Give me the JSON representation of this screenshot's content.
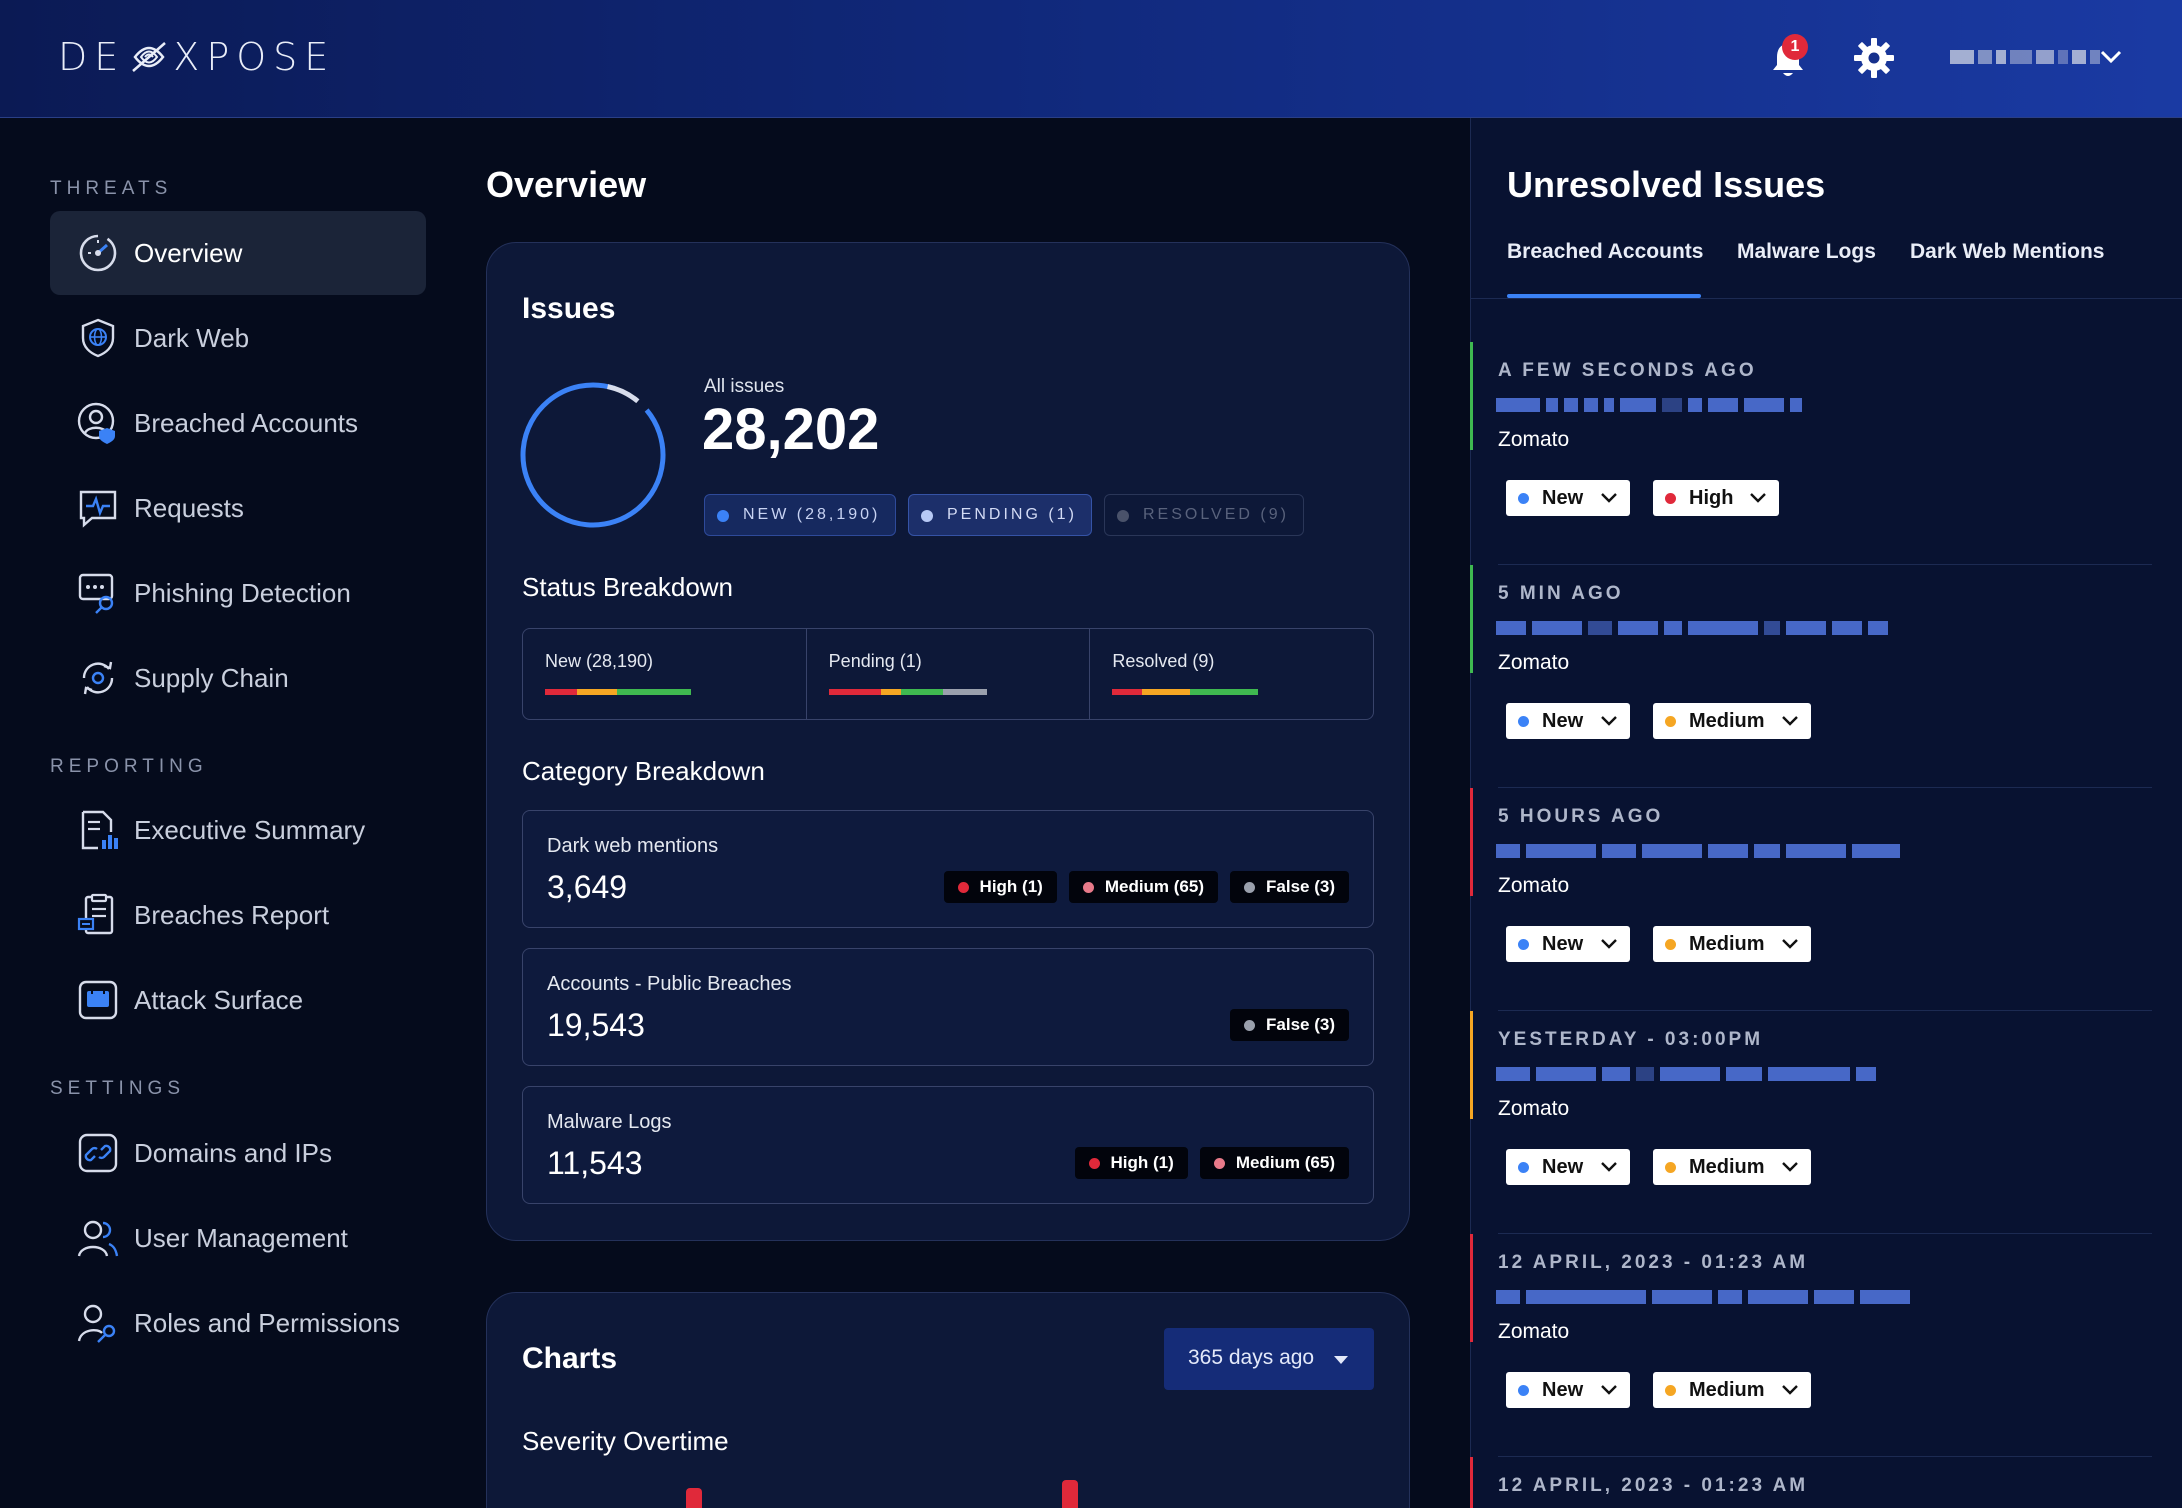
{
  "header": {
    "logo_text_left": "DE",
    "logo_text_right": "XPOSE",
    "notifications_count": "1",
    "user_name_blurred": true
  },
  "sidebar": {
    "sections": [
      {
        "label": "THREATS"
      },
      {
        "label": "REPORTING"
      },
      {
        "label": "SETTINGS"
      }
    ],
    "items": [
      {
        "label": "Overview",
        "icon": "speedometer-icon",
        "active": true
      },
      {
        "label": "Dark Web",
        "icon": "shield-globe-icon"
      },
      {
        "label": "Breached Accounts",
        "icon": "user-shield-icon"
      },
      {
        "label": "Requests",
        "icon": "chat-pulse-icon"
      },
      {
        "label": "Phishing Detection",
        "icon": "phishing-key-icon"
      },
      {
        "label": "Supply Chain",
        "icon": "supply-cycle-icon"
      },
      {
        "label": "Executive Summary",
        "icon": "report-chart-icon"
      },
      {
        "label": "Breaches Report",
        "icon": "clipboard-report-icon"
      },
      {
        "label": "Attack Surface",
        "icon": "calendar-grid-icon"
      },
      {
        "label": "Domains and IPs",
        "icon": "link-icon"
      },
      {
        "label": "User Management",
        "icon": "users-icon"
      },
      {
        "label": "Roles and Permissions",
        "icon": "user-key-icon"
      }
    ]
  },
  "main": {
    "title": "Overview",
    "issues_card": {
      "title": "Issues",
      "all_label": "All issues",
      "all_value": "28,202",
      "pills": {
        "new": "NEW (28,190)",
        "pending": "PENDING (1)",
        "resolved": "RESOLVED (9)"
      },
      "status_title": "Status Breakdown",
      "status": [
        {
          "label": "New (28,190)"
        },
        {
          "label": "Pending (1)"
        },
        {
          "label": "Resolved (9)"
        }
      ],
      "category_title": "Category Breakdown",
      "categories": [
        {
          "label": "Dark web mentions",
          "value": "3,649",
          "tags": [
            "High (1)",
            "Medium (65)",
            "False (3)"
          ]
        },
        {
          "label": "Accounts - Public Breaches",
          "value": "19,543",
          "tags": [
            "False (3)"
          ]
        },
        {
          "label": "Malware Logs",
          "value": "11,543",
          "tags": [
            "High (1)",
            "Medium (65)"
          ]
        }
      ]
    },
    "charts_card": {
      "title": "Charts",
      "range_select": "365 days ago",
      "severity_title": "Severity Overtime"
    }
  },
  "right_panel": {
    "title": "Unresolved Issues",
    "tabs": [
      "Breached Accounts",
      "Malware Logs",
      "Dark Web Mentions"
    ],
    "issues": [
      {
        "time": "A FEW SECONDS AGO",
        "company": "Zomato",
        "status": "New",
        "severity": "High",
        "edge_color": "#3fb950"
      },
      {
        "time": "5 MIN AGO",
        "company": "Zomato",
        "status": "New",
        "severity": "Medium",
        "edge_color": "#3fb950"
      },
      {
        "time": "5 HOURS AGO",
        "company": "Zomato",
        "status": "New",
        "severity": "Medium",
        "edge_color": "#e0293a"
      },
      {
        "time": "YESTERDAY -  03:00PM",
        "company": "Zomato",
        "status": "New",
        "severity": "Medium",
        "edge_color": "#f5a623"
      },
      {
        "time": "12 APRIL, 2023 - 01:23 AM",
        "company": "Zomato",
        "status": "New",
        "severity": "Medium",
        "edge_color": "#e0293a"
      },
      {
        "time": "12 APRIL, 2023 - 01:23 AM",
        "edge_color": "#e0293a"
      }
    ]
  },
  "colors": {
    "accent_blue": "#3b82f6",
    "high_red": "#e0293a",
    "medium_orange": "#f5a623",
    "medium_pink": "#e87a8a",
    "false_gray": "#9aa0ad",
    "green": "#3fb950"
  }
}
